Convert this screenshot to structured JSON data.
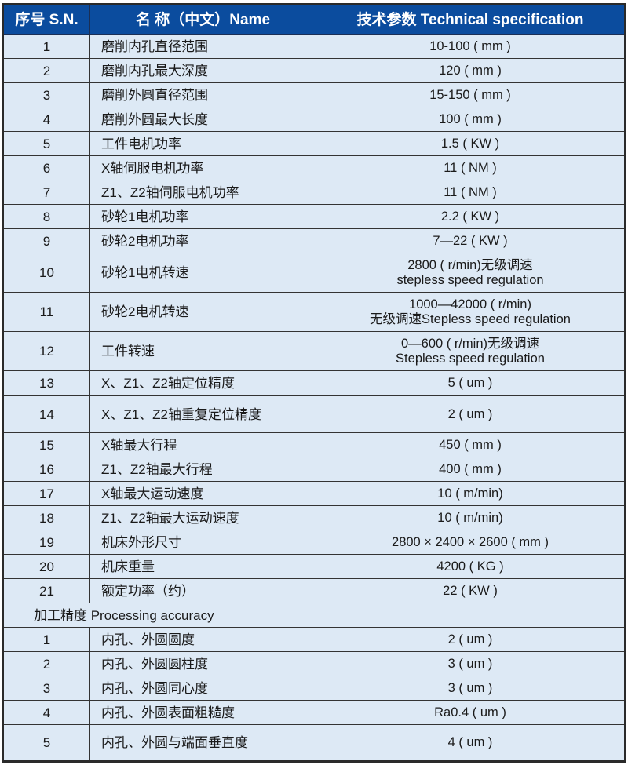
{
  "header": {
    "sn": "序号 S.N.",
    "name": "名 称（中文）Name",
    "spec": "技术参数 Technical specification"
  },
  "rows": [
    {
      "sn": "1",
      "name": "磨削内孔直径范围",
      "spec": "10-100 ( mm )"
    },
    {
      "sn": "2",
      "name": "磨削内孔最大深度",
      "spec": "120 ( mm )"
    },
    {
      "sn": "3",
      "name": "磨削外圆直径范围",
      "spec": "15-150 ( mm )"
    },
    {
      "sn": "4",
      "name": "磨削外圆最大长度",
      "spec": "100 ( mm )"
    },
    {
      "sn": "5",
      "name": "工件电机功率",
      "spec": "1.5 ( KW )"
    },
    {
      "sn": "6",
      "name": "X轴伺服电机功率",
      "spec": "11 ( NM )"
    },
    {
      "sn": "7",
      "name": "Z1、Z2轴伺服电机功率",
      "spec": "11 ( NM )"
    },
    {
      "sn": "8",
      "name": "砂轮1电机功率",
      "spec": "2.2 ( KW )"
    },
    {
      "sn": "9",
      "name": "砂轮2电机功率",
      "spec": "7—22 ( KW )"
    },
    {
      "sn": "10",
      "name": "砂轮1电机转速",
      "spec": "2800 ( r/min)无级调速",
      "spec2": "stepless speed regulation"
    },
    {
      "sn": "11",
      "name": "砂轮2电机转速",
      "spec": "1000—42000 ( r/min)",
      "spec2": "无级调速Stepless speed regulation"
    },
    {
      "sn": "12",
      "name": "工件转速",
      "spec": "0—600 ( r/min)无级调速",
      "spec2": "Stepless speed regulation"
    },
    {
      "sn": "13",
      "name": "X、Z1、Z2轴定位精度",
      "spec": "5 ( um )"
    },
    {
      "sn": "14",
      "name": "X、Z1、Z2轴重复定位精度",
      "spec": "2 ( um )"
    },
    {
      "sn": "15",
      "name": "X轴最大行程",
      "spec": "450 ( mm )"
    },
    {
      "sn": "16",
      "name": "Z1、Z2轴最大行程",
      "spec": "400 ( mm )"
    },
    {
      "sn": "17",
      "name": "X轴最大运动速度",
      "spec": "10 ( m/min)"
    },
    {
      "sn": "18",
      "name": "Z1、Z2轴最大运动速度",
      "spec": "10 ( m/min)"
    },
    {
      "sn": "19",
      "name": "机床外形尺寸",
      "spec": "2800 × 2400 × 2600 ( mm )"
    },
    {
      "sn": "20",
      "name": "机床重量",
      "spec": "4200 ( KG )"
    },
    {
      "sn": "21",
      "name": "额定功率（约）",
      "spec": "22 ( KW )"
    }
  ],
  "section": "加工精度 Processing accuracy",
  "accuracy": [
    {
      "sn": "1",
      "name": "内孔、外圆圆度",
      "spec": "2 ( um )"
    },
    {
      "sn": "2",
      "name": "内孔、外圆圆柱度",
      "spec": "3 ( um )"
    },
    {
      "sn": "3",
      "name": "内孔、外圆同心度",
      "spec": "3 ( um )"
    },
    {
      "sn": "4",
      "name": "内孔、外圆表面粗糙度",
      "spec": "Ra0.4 ( um )"
    },
    {
      "sn": "5",
      "name": "内孔、外圆与端面垂直度",
      "spec": "4 ( um )"
    }
  ],
  "colors": {
    "header_bg": "#0b4c9e",
    "cell_bg": "#dde9f5"
  }
}
